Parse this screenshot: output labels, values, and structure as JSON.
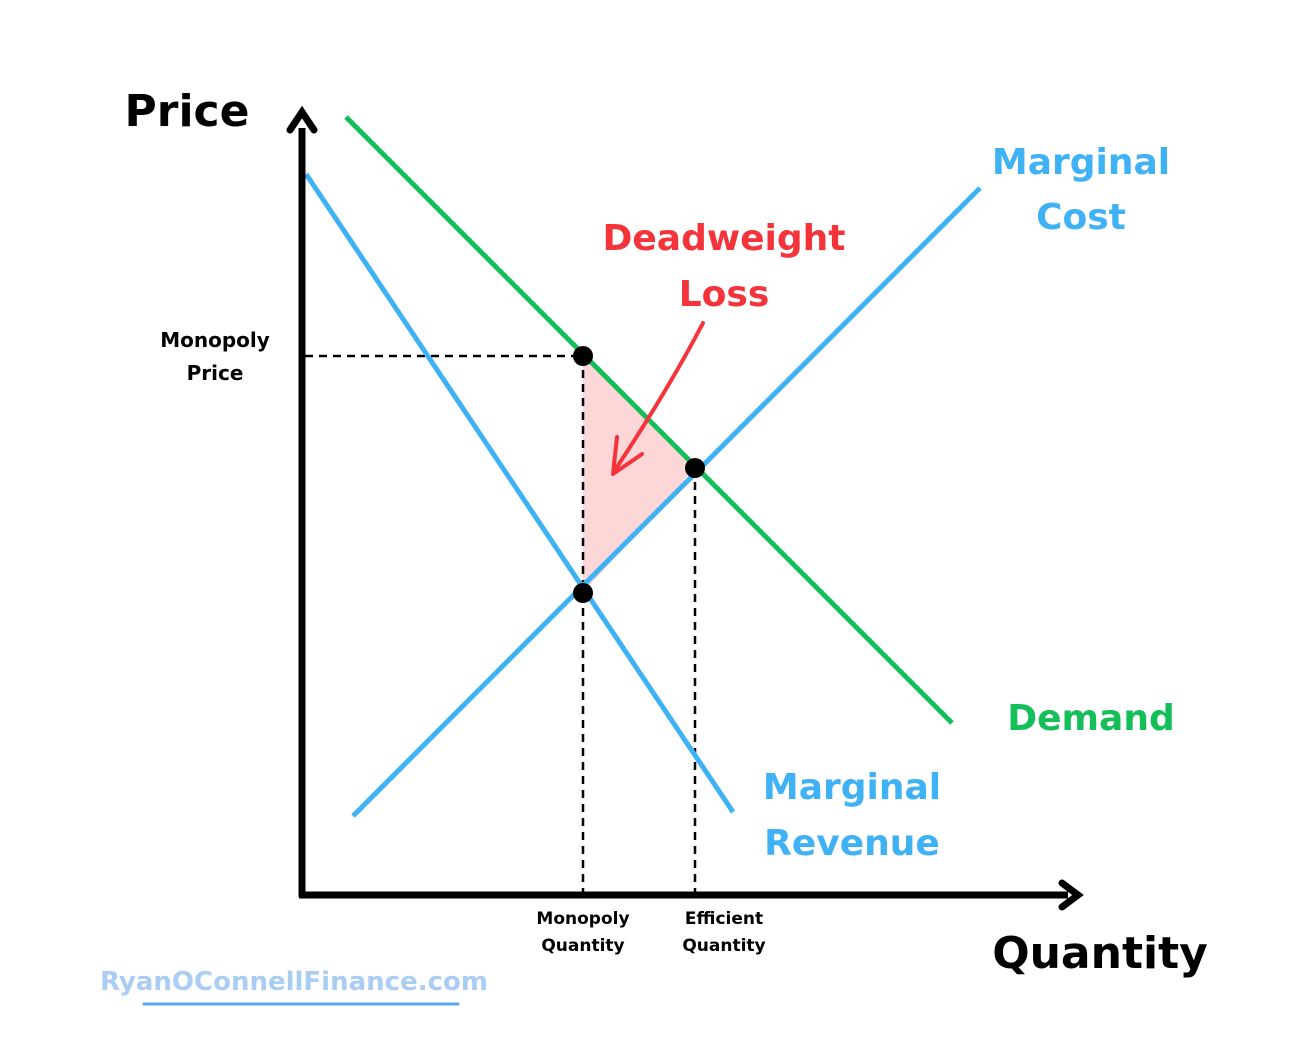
{
  "axes": {
    "y_title": "Price",
    "x_title": "Quantity"
  },
  "curves": {
    "marginal_cost": {
      "line1": "Marginal",
      "line2": "Cost",
      "color": "#3fb1f5"
    },
    "marginal_revenue": {
      "line1": "Marginal",
      "line2": "Revenue",
      "color": "#3fb1f5"
    },
    "demand": {
      "label": "Demand",
      "color": "#14bf5a"
    }
  },
  "deadweight_loss": {
    "line1": "Deadweight",
    "line2": "Loss",
    "color": "#f5333a",
    "fill": "#fdd7d7"
  },
  "price_markers": {
    "monopoly_price": {
      "line1": "Monopoly",
      "line2": "Price"
    }
  },
  "quantity_markers": {
    "monopoly_quantity": {
      "line1": "Monopoly",
      "line2": "Quantity"
    },
    "efficient_quantity": {
      "line1": "Efficient",
      "line2": "Quantity"
    }
  },
  "watermark": "RyanOConnellFinance.com"
}
